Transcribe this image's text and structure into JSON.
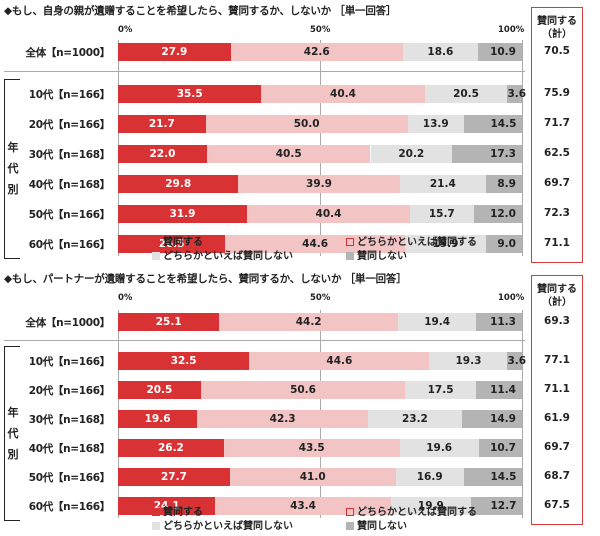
{
  "colors": {
    "agree": "#d93235",
    "somewhat_agree": "#f2c4c4",
    "somewhat_disagree": "#e2e2e2",
    "disagree": "#b4b4b4",
    "summary_border": "#d63a3a"
  },
  "legend": {
    "agree": "賛同する",
    "somewhat_agree": "どちらかといえば賛同する",
    "somewhat_disagree": "どちらかといえば賛同しない",
    "disagree": "賛同しない"
  },
  "summary_header": [
    "賛同する",
    "（計）"
  ],
  "age_group_label": [
    "年",
    "代",
    "別"
  ],
  "ticks": [
    "0%",
    "50%",
    "100%"
  ],
  "chart_data": [
    {
      "type": "bar",
      "stacked": "horizontal-100%",
      "title": "◆もし、自身の親が遺贈することを希望したら、賛同するか、しないか ［単一回答］",
      "xlim": [
        0,
        100
      ],
      "categories": [
        "全体【n=1000】",
        "10代【n=166】",
        "20代【n=166】",
        "30代【n=168】",
        "40代【n=168】",
        "50代【n=166】",
        "60代【n=166】"
      ],
      "series": [
        {
          "name": "賛同する",
          "values": [
            27.9,
            35.5,
            21.7,
            22.0,
            29.8,
            31.9,
            26.5
          ]
        },
        {
          "name": "どちらかといえば賛同する",
          "values": [
            42.6,
            40.4,
            50.0,
            40.5,
            39.9,
            40.4,
            44.6
          ]
        },
        {
          "name": "どちらかといえば賛同しない",
          "values": [
            18.6,
            20.5,
            13.9,
            20.2,
            21.4,
            15.7,
            19.9
          ]
        },
        {
          "name": "賛同しない",
          "values": [
            10.9,
            3.6,
            14.5,
            17.3,
            8.9,
            12.0,
            9.0
          ]
        }
      ],
      "summary": [
        "70.5",
        "75.9",
        "71.7",
        "62.5",
        "69.7",
        "72.3",
        "71.1"
      ]
    },
    {
      "type": "bar",
      "stacked": "horizontal-100%",
      "title": "◆もし、パートナーが遺贈することを希望したら、賛同するか、しないか ［単一回答］",
      "xlim": [
        0,
        100
      ],
      "categories": [
        "全体【n=1000】",
        "10代【n=166】",
        "20代【n=166】",
        "30代【n=168】",
        "40代【n=168】",
        "50代【n=166】",
        "60代【n=166】"
      ],
      "series": [
        {
          "name": "賛同する",
          "values": [
            25.1,
            32.5,
            20.5,
            19.6,
            26.2,
            27.7,
            24.1
          ]
        },
        {
          "name": "どちらかといえば賛同する",
          "values": [
            44.2,
            44.6,
            50.6,
            42.3,
            43.5,
            41.0,
            43.4
          ]
        },
        {
          "name": "どちらかといえば賛同しない",
          "values": [
            19.4,
            19.3,
            17.5,
            23.2,
            19.6,
            16.9,
            19.9
          ]
        },
        {
          "name": "賛同しない",
          "values": [
            11.3,
            3.6,
            11.4,
            14.9,
            10.7,
            14.5,
            12.7
          ]
        }
      ],
      "summary": [
        "69.3",
        "77.1",
        "71.1",
        "61.9",
        "69.7",
        "68.7",
        "67.5"
      ]
    }
  ]
}
